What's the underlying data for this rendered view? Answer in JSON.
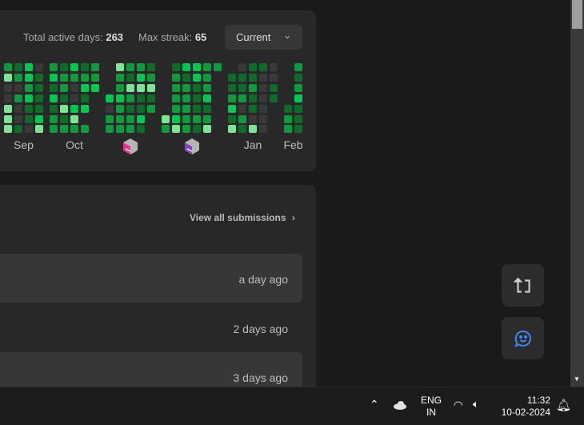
{
  "stats": {
    "active_label": "Total active days:",
    "active_value": "263",
    "streak_label": "Max streak:",
    "streak_value": "65"
  },
  "dropdown": {
    "selected": "Current"
  },
  "heatmap": {
    "colors": {
      "0": "#393939",
      "1": "#0e6b2a",
      "2": "#109a3f",
      "3": "#00c853",
      "4": "#7be495"
    },
    "groups": [
      {
        "label": "Sep",
        "columns": [
          [
            2,
            4,
            0,
            0,
            4,
            4,
            4
          ],
          [
            1,
            2,
            0,
            2,
            0,
            0,
            1
          ],
          [
            3,
            3,
            2,
            3,
            1,
            1,
            0
          ],
          [
            0,
            1,
            1,
            1,
            1,
            3,
            4
          ]
        ]
      },
      {
        "label": "Oct",
        "columns": [
          [
            2,
            3,
            1,
            3,
            1,
            2,
            2
          ],
          [
            1,
            2,
            2,
            1,
            4,
            1,
            2
          ],
          [
            3,
            2,
            0,
            0,
            3,
            4,
            2
          ],
          [
            1,
            2,
            3,
            1,
            3,
            null,
            2
          ],
          [
            2,
            2,
            3,
            null,
            null,
            null,
            null
          ]
        ]
      },
      {
        "badge": "nov-badge-icon",
        "badge_color": "#e0358f",
        "columns": [
          [
            null,
            null,
            null,
            3,
            0,
            2,
            2
          ],
          [
            4,
            2,
            2,
            3,
            2,
            2,
            2
          ],
          [
            2,
            1,
            4,
            2,
            1,
            2,
            2
          ],
          [
            2,
            3,
            4,
            1,
            1,
            3,
            1
          ],
          [
            1,
            2,
            4,
            1,
            2,
            null,
            null
          ]
        ]
      },
      {
        "badge": "dec-badge-icon",
        "badge_color": "#8e3fd0",
        "columns": [
          [
            null,
            null,
            null,
            null,
            null,
            4,
            2
          ],
          [
            1,
            2,
            2,
            2,
            2,
            3,
            4
          ],
          [
            3,
            1,
            2,
            2,
            2,
            2,
            2
          ],
          [
            3,
            3,
            1,
            1,
            1,
            2,
            1
          ],
          [
            2,
            2,
            2,
            3,
            1,
            2,
            4
          ],
          [
            2,
            null,
            null,
            null,
            null,
            null,
            null
          ]
        ]
      },
      {
        "label": "Jan",
        "columns": [
          [
            null,
            1,
            1,
            2,
            3,
            1,
            4
          ],
          [
            0,
            1,
            1,
            2,
            0,
            2,
            1
          ],
          [
            1,
            1,
            2,
            1,
            1,
            0,
            4
          ],
          [
            1,
            0,
            0,
            0,
            0,
            0,
            0
          ],
          [
            0,
            0,
            1,
            1,
            null,
            null,
            null
          ]
        ]
      },
      {
        "label": "Feb",
        "columns": [
          [
            null,
            null,
            null,
            null,
            1,
            2,
            2
          ],
          [
            2,
            1,
            2,
            3,
            1,
            1,
            1
          ]
        ]
      }
    ]
  },
  "submissions": {
    "view_all": "View all submissions",
    "rows": [
      {
        "time": "a day ago"
      },
      {
        "time": "2 days ago"
      },
      {
        "time": "3 days ago"
      }
    ]
  },
  "taskbar": {
    "lang1": "ENG",
    "lang2": "IN",
    "time": "11:32",
    "date": "10-02-2024"
  }
}
